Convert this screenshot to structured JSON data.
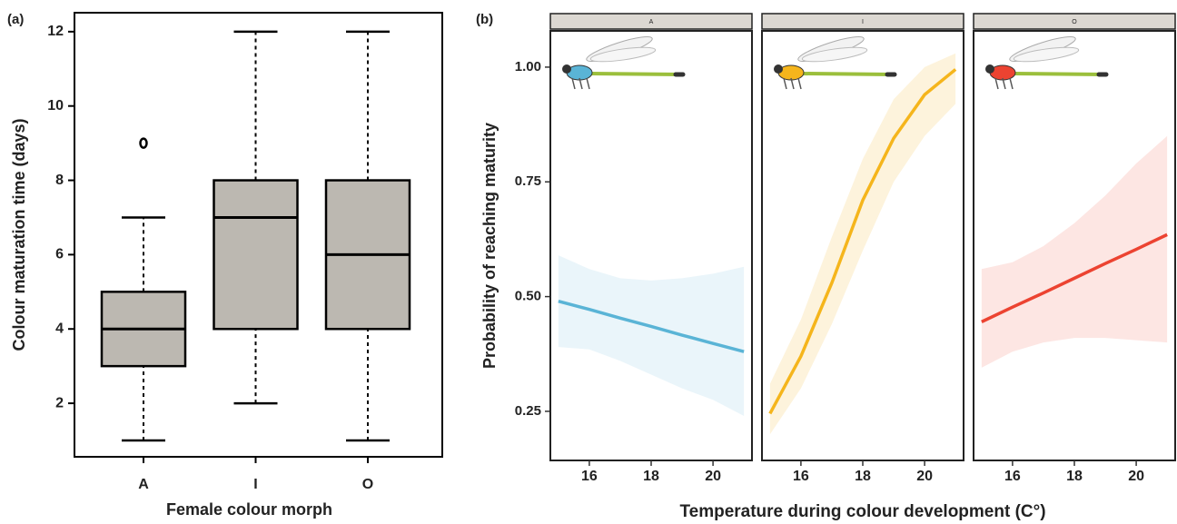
{
  "chart_data": [
    {
      "type": "box",
      "panel_label": "(a)",
      "x_label": "Female colour morph",
      "y_label": "Colour maturation time (days)",
      "categories": [
        "A",
        "I",
        "O"
      ],
      "whisker_low": [
        1,
        2,
        1
      ],
      "q1": [
        3,
        4,
        4
      ],
      "median": [
        4,
        7,
        6
      ],
      "q3": [
        5,
        8,
        8
      ],
      "whisker_high": [
        7,
        12,
        12
      ],
      "outliers": [
        [
          9
        ],
        [],
        []
      ],
      "color": "#bcb8b1",
      "ylim": [
        0.56,
        12.51
      ],
      "yticks": [
        2,
        4,
        6,
        8,
        10,
        12
      ]
    },
    {
      "type": "line",
      "panel_label": "(b)",
      "x_label": "Temperature during colour development (C°)",
      "y_label": "Probability of reaching maturity",
      "x": [
        15,
        16,
        17,
        18,
        19,
        20,
        21
      ],
      "xlim": [
        14.74,
        21.26
      ],
      "xticks": [
        16,
        18,
        20
      ],
      "ylim": [
        0.143,
        1.079
      ],
      "yticks": [
        0.25,
        {
          "value": 0.5,
          "label": "0.50"
        },
        {
          "value": 0.75,
          "label": "0.75"
        },
        {
          "value": 1,
          "label": "1.00"
        }
      ],
      "series": [
        {
          "name": "A",
          "color": "#5ab4d6",
          "fill": "#eaf5fa",
          "values": [
            0.49,
            0.472,
            0.453,
            0.435,
            0.416,
            0.398,
            0.38
          ],
          "lower": [
            0.39,
            0.385,
            0.36,
            0.33,
            0.3,
            0.275,
            0.24
          ],
          "upper": [
            0.59,
            0.56,
            0.54,
            0.535,
            0.54,
            0.55,
            0.565
          ]
        },
        {
          "name": "I",
          "color": "#f5b51c",
          "fill": "#fdf3dc",
          "values": [
            0.245,
            0.37,
            0.53,
            0.71,
            0.845,
            0.94,
            0.995
          ],
          "lower": [
            0.2,
            0.3,
            0.44,
            0.6,
            0.75,
            0.85,
            0.92
          ],
          "upper": [
            0.31,
            0.45,
            0.63,
            0.8,
            0.93,
            1.0,
            1.03
          ]
        },
        {
          "name": "O",
          "color": "#ec4331",
          "fill": "#fde6e3",
          "values": [
            0.445,
            0.477,
            0.508,
            0.54,
            0.572,
            0.603,
            0.635
          ],
          "lower": [
            0.345,
            0.38,
            0.4,
            0.41,
            0.41,
            0.405,
            0.4
          ],
          "upper": [
            0.56,
            0.575,
            0.61,
            0.66,
            0.72,
            0.79,
            0.85
          ]
        }
      ]
    }
  ]
}
